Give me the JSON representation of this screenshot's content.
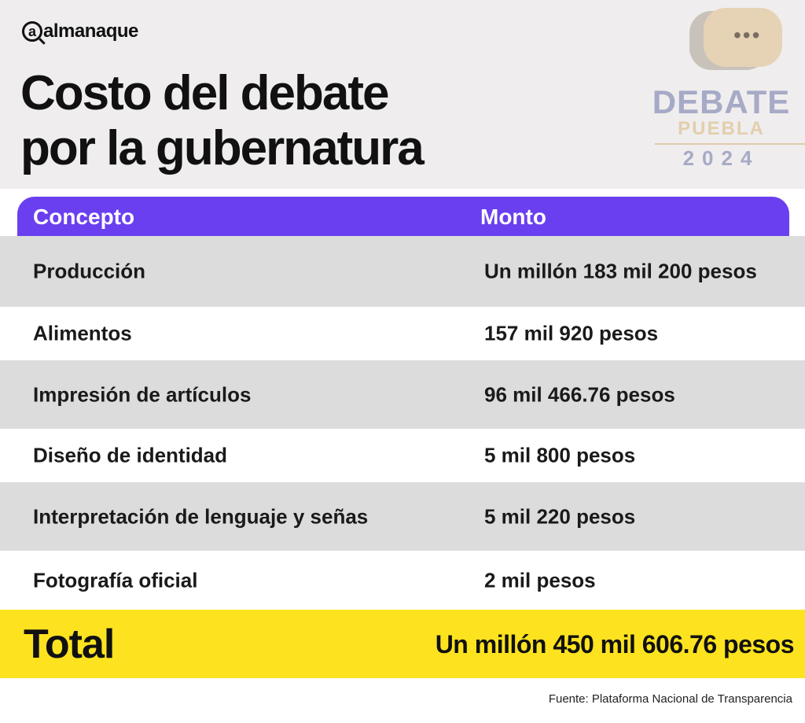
{
  "brand": {
    "logo": "almanaque",
    "logo_at": "a"
  },
  "title": {
    "line1": "Costo del debate",
    "line2": "por la gubernatura"
  },
  "event_logo": {
    "word1": "DEBATE",
    "word2": "PUEBLA",
    "year": "2024"
  },
  "table": {
    "headers": [
      "Concepto",
      "Monto"
    ],
    "rows": [
      {
        "concepto": "Producción",
        "monto": "Un millón 183 mil 200 pesos"
      },
      {
        "concepto": "Alimentos",
        "monto": "157 mil 920 pesos"
      },
      {
        "concepto": "Impresión de artículos",
        "monto": "96 mil 466.76 pesos"
      },
      {
        "concepto": "Diseño de identidad",
        "monto": "5 mil 800 pesos"
      },
      {
        "concepto": "Interpretación de lenguaje y señas",
        "monto": "5 mil 220 pesos"
      },
      {
        "concepto": "Fotografía oficial",
        "monto": "2 mil pesos"
      }
    ],
    "total_label": "Total",
    "total_value": "Un millón 450 mil 606.76 pesos"
  },
  "source": "Fuente: Plataforma Nacional de Transparencia",
  "colors": {
    "header": "#6a3ff0",
    "total": "#fde31f",
    "stripe": "#dcdcdc"
  }
}
